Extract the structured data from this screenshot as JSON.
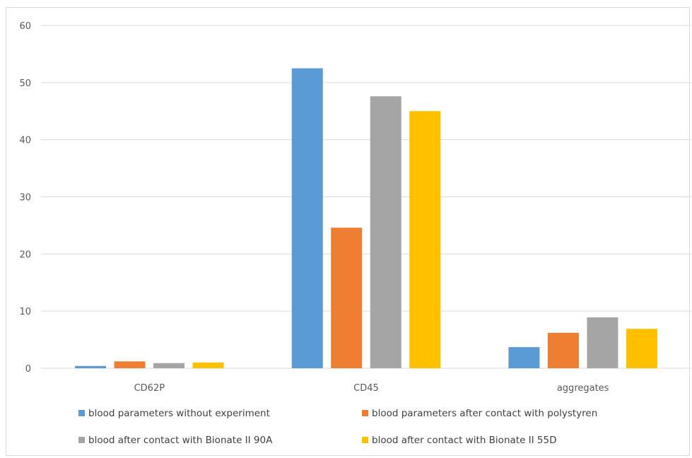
{
  "chart_data": {
    "type": "bar",
    "title": "",
    "xlabel": "",
    "ylabel": "",
    "ylim": [
      0,
      60
    ],
    "yticks": [
      0,
      10,
      20,
      30,
      40,
      50,
      60
    ],
    "grid": true,
    "legend_position": "bottom",
    "categories": [
      "CD62P",
      "CD45",
      "aggregates"
    ],
    "series": [
      {
        "name": "blood parameters without experiment",
        "color": "#5b9bd5",
        "values": [
          0.4,
          52.5,
          3.7
        ]
      },
      {
        "name": "blood parameters after contact with polystyren",
        "color": "#ed7d31",
        "values": [
          1.2,
          24.6,
          6.2
        ]
      },
      {
        "name": "blood after contact with Bionate II 90A",
        "color": "#a5a5a5",
        "values": [
          0.9,
          47.6,
          8.9
        ]
      },
      {
        "name": "blood after contact with Bionate II 55D",
        "color": "#ffc000",
        "values": [
          1.0,
          45.0,
          6.9
        ]
      }
    ]
  }
}
